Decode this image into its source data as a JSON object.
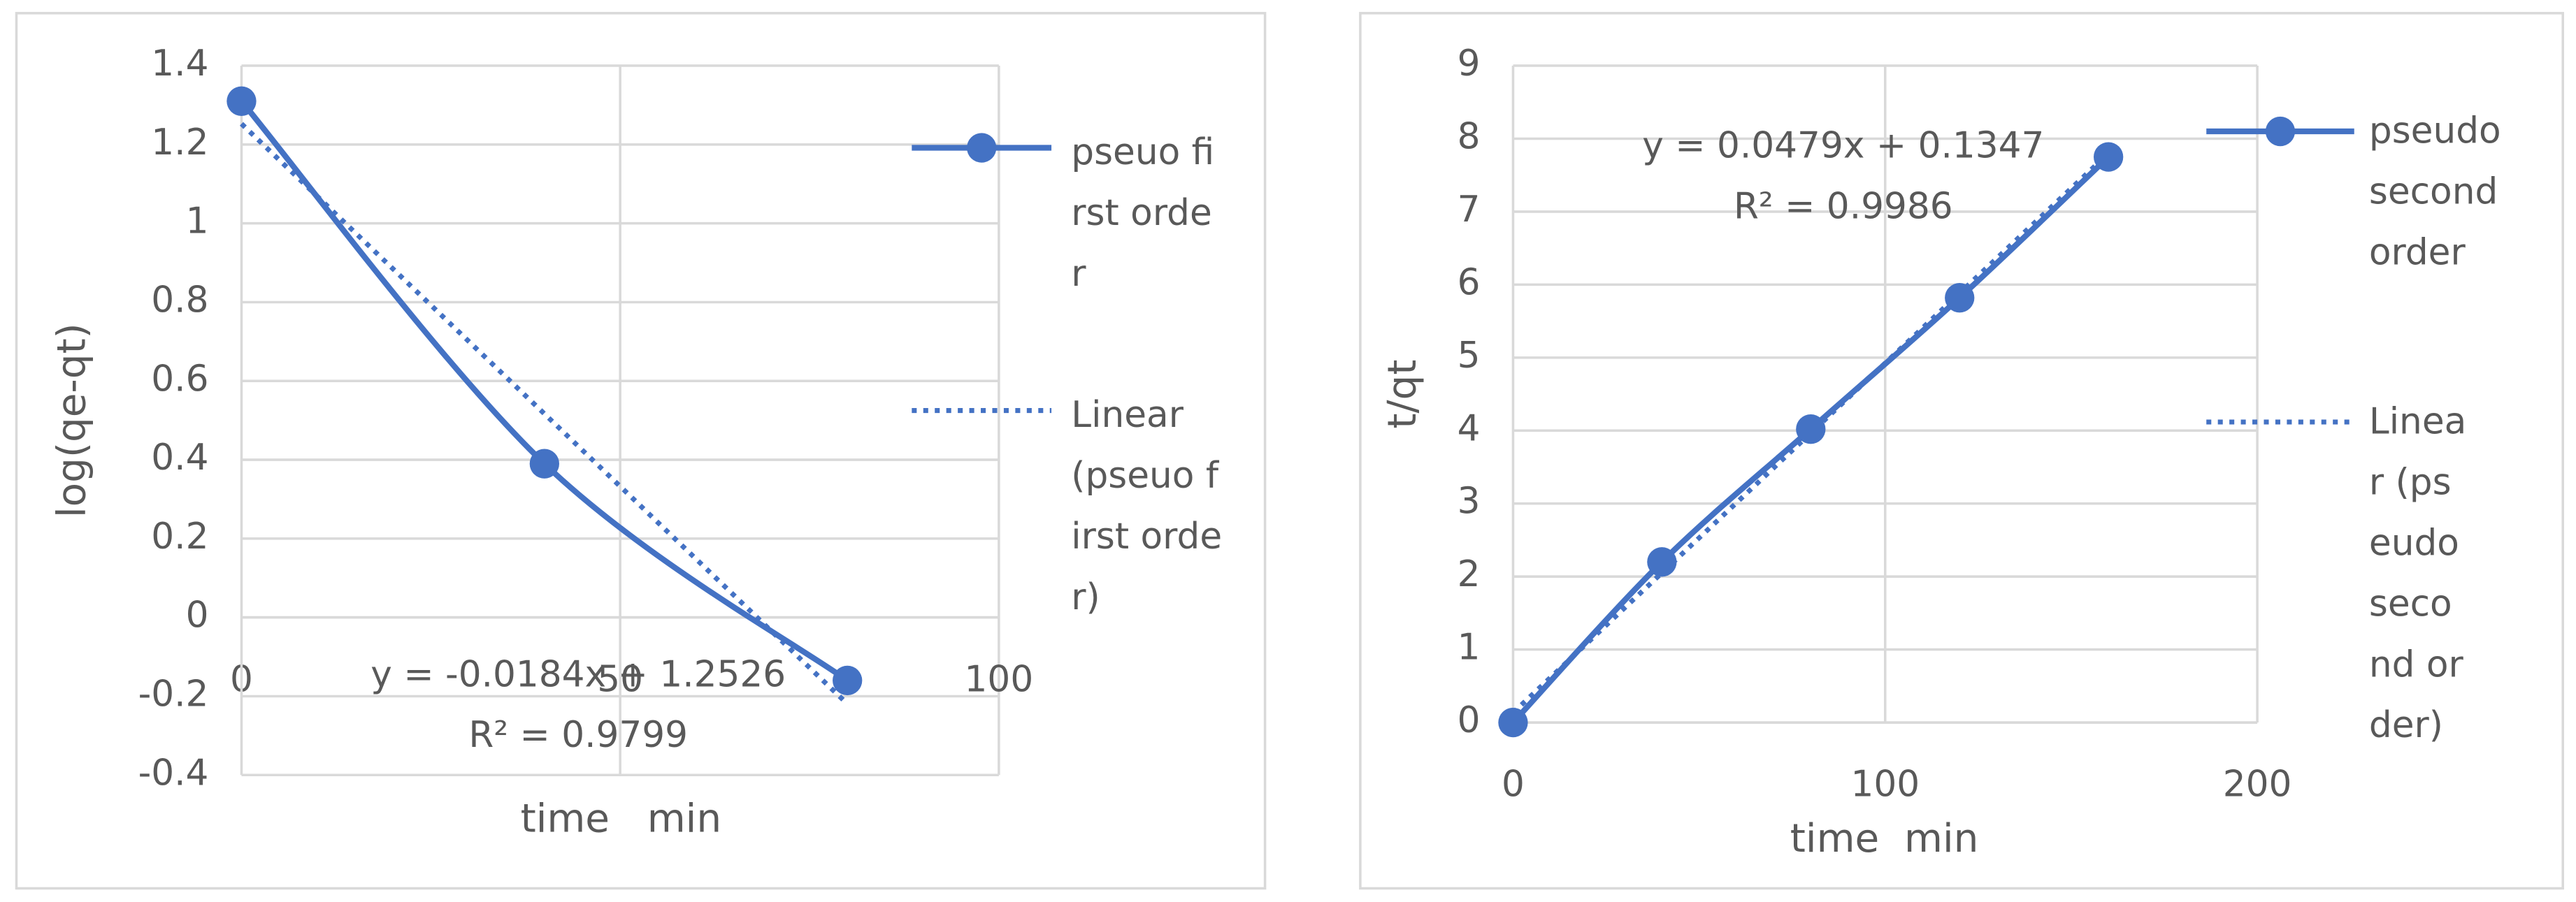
{
  "chart_data": [
    {
      "type": "scatter",
      "x_label": "time   min",
      "y_label": "log(qe-qt)",
      "xlim": [
        0,
        100
      ],
      "xticks": [
        0,
        50,
        100
      ],
      "ylim": [
        -0.4,
        1.4
      ],
      "yticks": [
        -0.4,
        -0.2,
        0,
        0.2,
        0.4,
        0.6,
        0.8,
        1,
        1.2,
        1.4
      ],
      "grid": true,
      "legend": "right",
      "series": [
        {
          "name": "pseuo first order",
          "color": "#4472c4",
          "x": [
            0,
            40,
            80
          ],
          "values": [
            1.31,
            0.39,
            -0.16
          ]
        }
      ],
      "trendline": {
        "name": "Linear (pseuo first order)",
        "slope": -0.0184,
        "intercept": 1.2526,
        "equation": "y = -0.0184x + 1.2526",
        "r2": "R² = 0.9799"
      }
    },
    {
      "type": "scatter",
      "x_label": "time  min",
      "y_label": "t/qt",
      "xlim": [
        0,
        200
      ],
      "xticks": [
        0,
        100,
        200
      ],
      "ylim": [
        0,
        9
      ],
      "yticks": [
        0,
        1,
        2,
        3,
        4,
        5,
        6,
        7,
        8,
        9
      ],
      "grid": true,
      "legend": "right",
      "series": [
        {
          "name": "pseudo second order",
          "color": "#4472c4",
          "x": [
            0,
            40,
            80,
            120,
            160
          ],
          "values": [
            0,
            2.2,
            4.02,
            5.82,
            7.75
          ]
        }
      ],
      "trendline": {
        "name": "Linear (pseudo second order)",
        "slope": 0.0479,
        "intercept": 0.1347,
        "equation": "y = 0.0479x + 0.1347",
        "r2": "R² = 0.9986"
      }
    }
  ]
}
